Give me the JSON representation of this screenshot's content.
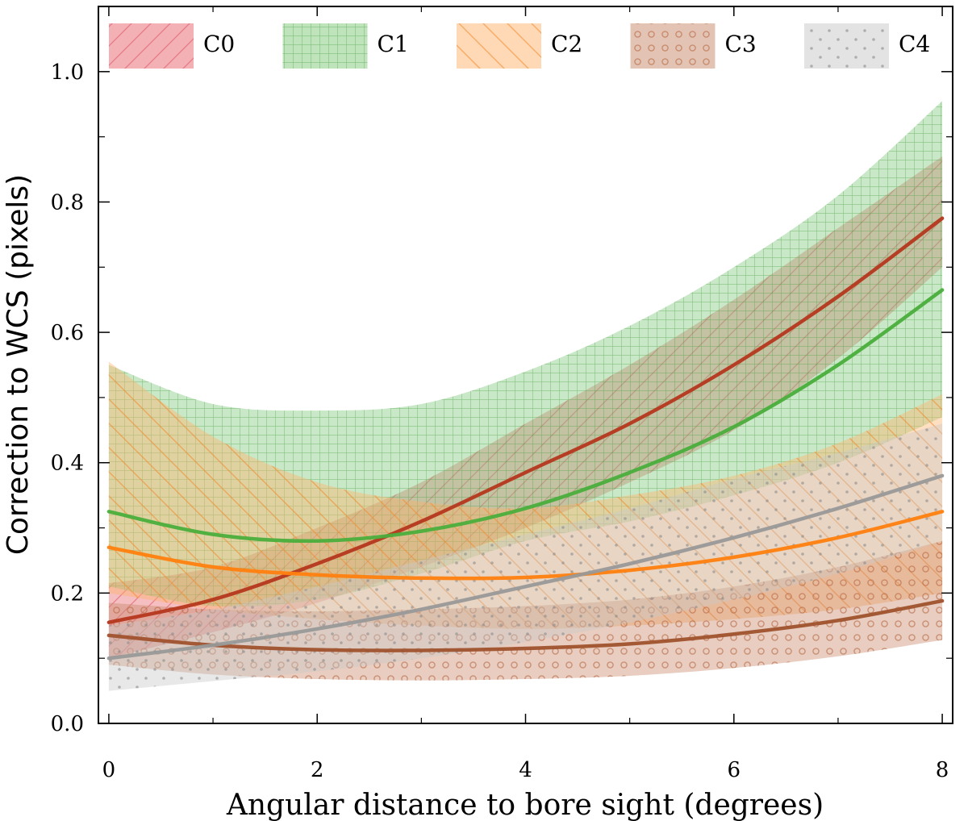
{
  "chart_data": {
    "type": "line",
    "xlabel": "Angular distance to bore sight (degrees)",
    "ylabel": "Correction to WCS (pixels)",
    "xlim": [
      -0.1,
      8.1
    ],
    "ylim": [
      0.0,
      1.1
    ],
    "xticks": [
      0,
      2,
      4,
      6,
      8
    ],
    "xtick_labels": [
      "0",
      "2",
      "4",
      "6",
      "8"
    ],
    "yticks": [
      0.0,
      0.2,
      0.4,
      0.6,
      0.8,
      1.0
    ],
    "ytick_labels": [
      "0.0",
      "0.2",
      "0.4",
      "0.6",
      "0.8",
      "1.0"
    ],
    "grid": false,
    "legend_position": "top",
    "series": [
      {
        "name": "C0",
        "line_color": "#b5371e",
        "fill_color": "#e8636b",
        "hatch": "diagonal",
        "x": [
          0,
          1,
          2,
          3,
          4,
          5,
          6,
          7,
          8
        ],
        "values": [
          0.155,
          0.19,
          0.245,
          0.31,
          0.385,
          0.46,
          0.55,
          0.655,
          0.775
        ],
        "lower": [
          0.1,
          0.14,
          0.185,
          0.24,
          0.3,
          0.37,
          0.45,
          0.56,
          0.7
        ],
        "upper": [
          0.215,
          0.24,
          0.3,
          0.37,
          0.46,
          0.55,
          0.65,
          0.76,
          0.87
        ]
      },
      {
        "name": "C1",
        "line_color": "#4aae3c",
        "fill_color": "#7fc97a",
        "hatch": "grid",
        "x": [
          0,
          1,
          2,
          3,
          4,
          5,
          6,
          7,
          8
        ],
        "values": [
          0.325,
          0.29,
          0.28,
          0.295,
          0.33,
          0.385,
          0.455,
          0.55,
          0.665
        ],
        "lower": [
          0.21,
          0.18,
          0.19,
          0.23,
          0.28,
          0.31,
          0.35,
          0.4,
          0.47
        ],
        "upper": [
          0.55,
          0.49,
          0.48,
          0.49,
          0.54,
          0.61,
          0.7,
          0.81,
          0.955
        ]
      },
      {
        "name": "C2",
        "line_color": "#ff7f0e",
        "fill_color": "#ffb36b",
        "hatch": "backdiagonal",
        "x": [
          0,
          1,
          2,
          3,
          4,
          5,
          6,
          7,
          8
        ],
        "values": [
          0.27,
          0.24,
          0.228,
          0.223,
          0.224,
          0.235,
          0.255,
          0.285,
          0.325
        ],
        "lower": [
          0.2,
          0.175,
          0.16,
          0.15,
          0.145,
          0.15,
          0.16,
          0.175,
          0.2
        ],
        "upper": [
          0.555,
          0.44,
          0.37,
          0.34,
          0.33,
          0.35,
          0.38,
          0.43,
          0.505
        ]
      },
      {
        "name": "C3",
        "line_color": "#a0522d",
        "fill_color": "#c8896a",
        "hatch": "circles",
        "x": [
          0,
          1,
          2,
          3,
          4,
          5,
          6,
          7,
          8
        ],
        "values": [
          0.135,
          0.12,
          0.113,
          0.112,
          0.115,
          0.122,
          0.137,
          0.158,
          0.188
        ],
        "lower": [
          0.09,
          0.075,
          0.068,
          0.066,
          0.068,
          0.073,
          0.085,
          0.103,
          0.128
        ],
        "upper": [
          0.185,
          0.175,
          0.172,
          0.175,
          0.18,
          0.19,
          0.21,
          0.24,
          0.28
        ]
      },
      {
        "name": "C4",
        "line_color": "#999999",
        "fill_color": "#c8c8c8",
        "hatch": "dots",
        "x": [
          0,
          1,
          2,
          3,
          4,
          5,
          6,
          7,
          8
        ],
        "values": [
          0.1,
          0.12,
          0.145,
          0.175,
          0.21,
          0.245,
          0.285,
          0.33,
          0.38
        ],
        "lower": [
          0.05,
          0.065,
          0.08,
          0.1,
          0.125,
          0.155,
          0.19,
          0.23,
          0.28
        ],
        "upper": [
          0.15,
          0.175,
          0.21,
          0.25,
          0.29,
          0.33,
          0.375,
          0.415,
          0.46
        ]
      }
    ]
  }
}
